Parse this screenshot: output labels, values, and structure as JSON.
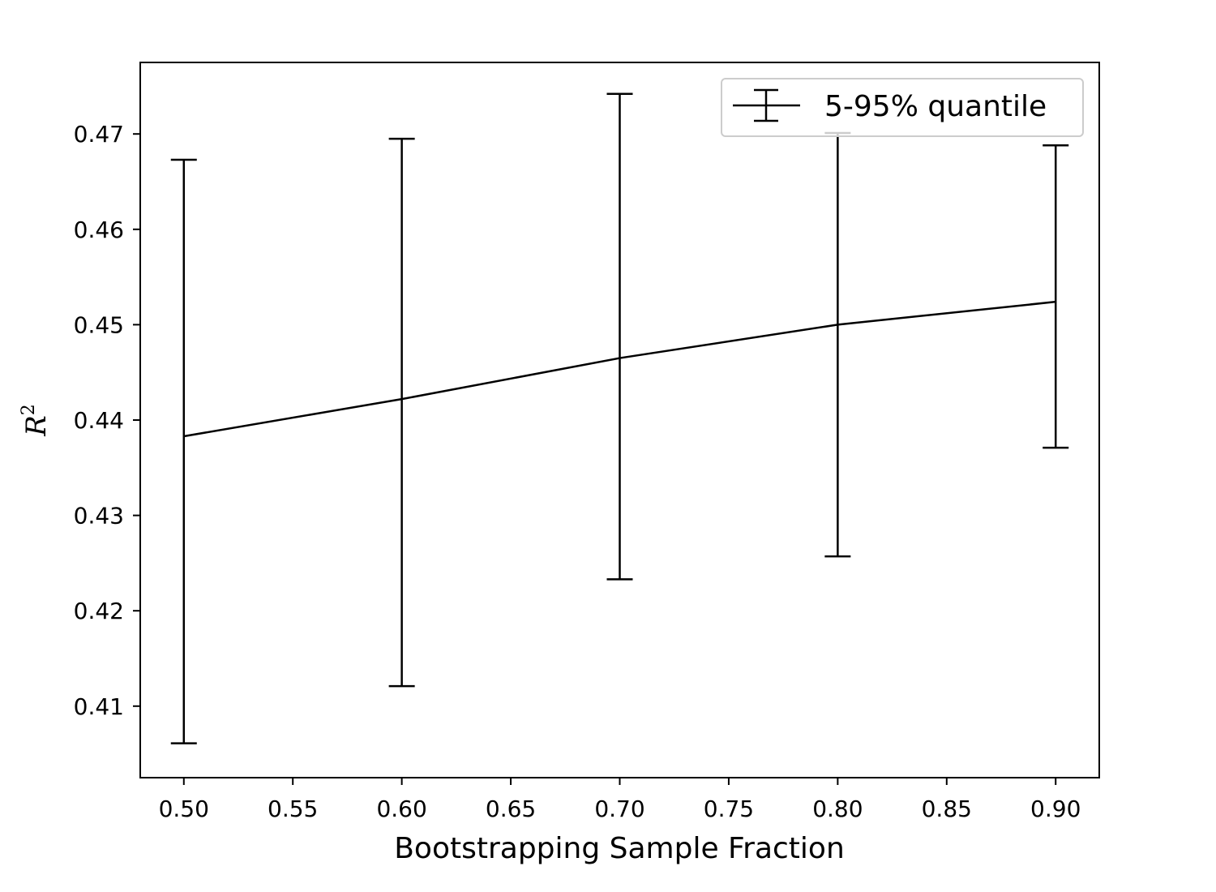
{
  "chart_data": {
    "type": "line",
    "xlabel": "Bootstrapping Sample Fraction",
    "ylabel": {
      "base": "R",
      "superscript": "2"
    },
    "xlim": [
      0.48,
      0.92
    ],
    "ylim": [
      0.4025,
      0.4775
    ],
    "xticks": [
      0.5,
      0.55,
      0.6,
      0.65,
      0.7,
      0.75,
      0.8,
      0.85,
      0.9
    ],
    "xtick_labels": [
      "0.50",
      "0.55",
      "0.60",
      "0.65",
      "0.70",
      "0.75",
      "0.80",
      "0.85",
      "0.90"
    ],
    "yticks": [
      0.41,
      0.42,
      0.43,
      0.44,
      0.45,
      0.46,
      0.47
    ],
    "ytick_labels": [
      "0.41",
      "0.42",
      "0.43",
      "0.44",
      "0.45",
      "0.46",
      "0.47"
    ],
    "legend_position": "top-right",
    "grid": false,
    "series": [
      {
        "name": "5-95% quantile",
        "color": "#000000",
        "points": [
          {
            "x": 0.5,
            "y": 0.4383,
            "lower": 0.4061,
            "upper": 0.4673
          },
          {
            "x": 0.6,
            "y": 0.4422,
            "lower": 0.4121,
            "upper": 0.4695
          },
          {
            "x": 0.7,
            "y": 0.4465,
            "lower": 0.4233,
            "upper": 0.4742
          },
          {
            "x": 0.8,
            "y": 0.45,
            "lower": 0.4257,
            "upper": 0.4701
          },
          {
            "x": 0.9,
            "y": 0.4524,
            "lower": 0.4371,
            "upper": 0.4688
          }
        ]
      }
    ]
  }
}
